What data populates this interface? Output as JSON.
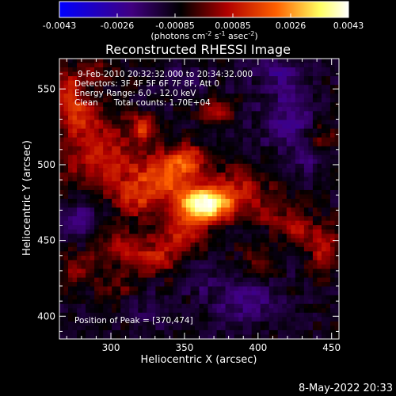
{
  "chart_data": {
    "type": "heatmap",
    "title": "Reconstructed RHESSI Image",
    "xlabel": "Heliocentric X (arcsec)",
    "ylabel": "Heliocentric Y (arcsec)",
    "xlim": [
      265,
      455
    ],
    "ylim": [
      385,
      570
    ],
    "x_ticks": [
      300,
      350,
      400,
      450
    ],
    "y_ticks": [
      400,
      450,
      500,
      550
    ],
    "colorbar": {
      "min": -0.0043,
      "max": 0.0043,
      "ticks": [
        "-0.0043",
        "-0.0026",
        "-0.00085",
        "0.00085",
        "0.0026",
        "0.0043"
      ],
      "unit_label_parts": [
        "(photons cm",
        "-2",
        " s",
        "-1",
        " asec",
        "-2",
        ")"
      ],
      "colormap": [
        "#0000ff",
        "#400080",
        "#000000",
        "#b00000",
        "#ff6000",
        "#ffff60",
        "#ffffff"
      ]
    },
    "annotations": {
      "time": "9-Feb-2010 20:32:32.000 to 20:34:32.000",
      "detectors": "Detectors: 3F 4F 5F 6F 7F 8F, Att 0",
      "energy": "Energy Range: 6.0 - 12.0 keV",
      "clean": "Clean      Total counts: 1.70E+04",
      "peak": "Position of Peak = [370,474]"
    },
    "peak_position": [
      370,
      474
    ],
    "total_counts": "1.70E+04",
    "blobs": [
      {
        "x": 365,
        "y": 474,
        "sx": 13,
        "sy": 8,
        "amp": 0.005
      },
      {
        "x": 338,
        "y": 492,
        "sx": 14,
        "sy": 12,
        "amp": 0.0024
      },
      {
        "x": 352,
        "y": 503,
        "sx": 8,
        "sy": 7,
        "amp": 0.002
      },
      {
        "x": 350,
        "y": 455,
        "sx": 10,
        "sy": 8,
        "amp": 0.002
      },
      {
        "x": 318,
        "y": 478,
        "sx": 10,
        "sy": 10,
        "amp": 0.0016
      },
      {
        "x": 294,
        "y": 505,
        "sx": 18,
        "sy": 16,
        "amp": 0.002
      },
      {
        "x": 270,
        "y": 548,
        "sx": 10,
        "sy": 10,
        "amp": 0.002
      },
      {
        "x": 280,
        "y": 530,
        "sx": 8,
        "sy": 8,
        "amp": 0.0016
      },
      {
        "x": 322,
        "y": 525,
        "sx": 6,
        "sy": 6,
        "amp": 0.002
      },
      {
        "x": 370,
        "y": 535,
        "sx": 8,
        "sy": 6,
        "amp": 0.0014
      },
      {
        "x": 388,
        "y": 488,
        "sx": 12,
        "sy": 9,
        "amp": 0.0014
      },
      {
        "x": 408,
        "y": 470,
        "sx": 12,
        "sy": 8,
        "amp": 0.0012
      },
      {
        "x": 428,
        "y": 455,
        "sx": 7,
        "sy": 7,
        "amp": 0.0016
      },
      {
        "x": 445,
        "y": 445,
        "sx": 7,
        "sy": 12,
        "amp": 0.0016
      },
      {
        "x": 400,
        "y": 438,
        "sx": 8,
        "sy": 7,
        "amp": 0.001
      },
      {
        "x": 310,
        "y": 445,
        "sx": 12,
        "sy": 8,
        "amp": 0.0016
      },
      {
        "x": 332,
        "y": 438,
        "sx": 10,
        "sy": 8,
        "amp": 0.0015
      },
      {
        "x": 278,
        "y": 432,
        "sx": 10,
        "sy": 7,
        "amp": 0.0012
      },
      {
        "x": 304,
        "y": 420,
        "sx": 8,
        "sy": 7,
        "amp": 0.001
      },
      {
        "x": 445,
        "y": 518,
        "sx": 7,
        "sy": 7,
        "amp": 0.001
      },
      {
        "x": 292,
        "y": 562,
        "sx": 8,
        "sy": 5,
        "amp": 0.001
      },
      {
        "x": 420,
        "y": 530,
        "sx": 14,
        "sy": 14,
        "amp": -0.0012
      },
      {
        "x": 390,
        "y": 410,
        "sx": 16,
        "sy": 10,
        "amp": -0.0012
      },
      {
        "x": 280,
        "y": 465,
        "sx": 9,
        "sy": 9,
        "amp": -0.001
      },
      {
        "x": 350,
        "y": 555,
        "sx": 12,
        "sy": 8,
        "amp": -0.0008
      },
      {
        "x": 415,
        "y": 560,
        "sx": 12,
        "sy": 8,
        "amp": -0.001
      },
      {
        "x": 330,
        "y": 405,
        "sx": 10,
        "sy": 8,
        "amp": -0.0008
      },
      {
        "x": 360,
        "y": 425,
        "sx": 8,
        "sy": 6,
        "amp": -0.0008
      },
      {
        "x": 435,
        "y": 500,
        "sx": 6,
        "sy": 6,
        "amp": -0.0008
      }
    ],
    "background_level": -0.0009
  },
  "footer": {
    "date": "8-May-2022 20:33"
  }
}
